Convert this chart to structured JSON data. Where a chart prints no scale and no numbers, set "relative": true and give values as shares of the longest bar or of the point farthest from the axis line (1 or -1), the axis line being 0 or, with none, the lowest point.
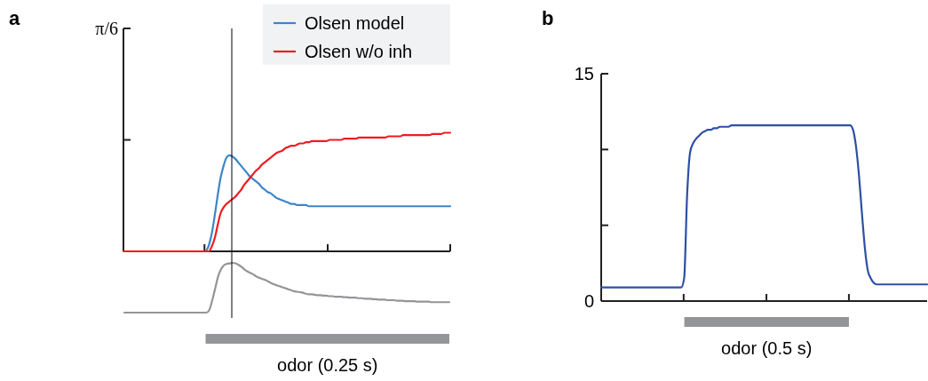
{
  "chart_data": [
    {
      "type": "line",
      "title": "a",
      "relative": true,
      "legend": "top right",
      "annotations": [
        "π/6"
      ],
      "categories": [
        null,
        null,
        null,
        null,
        null,
        null,
        null,
        null,
        null,
        null,
        null,
        null,
        null,
        null,
        null,
        null,
        null,
        null,
        null,
        null,
        null,
        null,
        null,
        null,
        null,
        null,
        null,
        null,
        null,
        null,
        null,
        null,
        null,
        null,
        null,
        null,
        null,
        null,
        null,
        null,
        null,
        null,
        null,
        null,
        null,
        null,
        null,
        null,
        null,
        null,
        null,
        null,
        null,
        null,
        null,
        null,
        null,
        null,
        null,
        null,
        null,
        null,
        null,
        null,
        null,
        null,
        null,
        null,
        null,
        null,
        null,
        null,
        null,
        null,
        null,
        null,
        null,
        null,
        null,
        null,
        null,
        null,
        null,
        null,
        null,
        null,
        null,
        null,
        null,
        null,
        null,
        null,
        null,
        null,
        null,
        null,
        null,
        null,
        null,
        null,
        null,
        null,
        null,
        null,
        null,
        null,
        null,
        null,
        null,
        null,
        null,
        null
      ],
      "series": [
        {
          "name": "Olsen model",
          "color": "#3d85c6",
          "values": [
            null,
            null,
            null,
            null,
            null,
            null,
            null,
            null,
            null,
            null,
            null,
            null,
            null,
            null,
            null,
            null,
            null,
            null,
            null,
            null,
            null,
            null,
            null,
            null,
            null,
            null,
            null,
            null,
            0,
            0.05,
            0.15,
            0.3,
            0.47,
            0.62,
            0.72,
            0.79,
            0.81,
            0.8,
            0.78,
            0.75,
            0.72,
            0.69,
            0.66,
            0.63,
            0.61,
            0.59,
            0.57,
            0.54,
            0.52,
            0.5,
            0.49,
            0.47,
            0.45,
            0.44,
            0.43,
            0.42,
            0.41,
            0.4,
            0.4,
            0.39,
            0.39,
            0.39,
            0.39,
            0.38,
            0.38,
            0.38,
            0.38,
            0.38,
            0.38,
            0.38,
            0.38,
            0.38,
            0.38,
            0.38,
            0.38,
            0.38,
            0.38,
            0.38,
            0.38,
            0.38,
            0.38,
            0.38,
            0.38,
            0.38,
            0.38,
            0.38,
            0.38,
            0.38,
            0.38,
            0.38,
            0.38,
            0.38,
            0.38,
            0.38,
            0.38,
            0.38,
            0.38,
            0.38,
            0.38,
            0.38,
            0.38,
            0.38,
            0.38,
            0.38,
            0.38,
            0.38,
            0.38,
            0.38,
            0.38,
            0.38,
            0.38,
            0.38
          ]
        },
        {
          "name": "Olsen w/o inh",
          "color": "#ed1c24",
          "values": [
            0,
            0,
            0,
            0,
            0,
            0,
            0,
            0,
            0,
            0,
            0,
            0,
            0,
            0,
            0,
            0,
            0,
            0,
            0,
            0,
            0,
            0,
            0,
            0,
            0,
            0,
            0,
            0,
            0,
            0,
            0.04,
            0.11,
            0.22,
            0.32,
            0.37,
            0.4,
            0.42,
            0.44,
            0.46,
            0.49,
            0.52,
            0.56,
            0.59,
            0.62,
            0.65,
            0.68,
            0.7,
            0.73,
            0.75,
            0.77,
            0.79,
            0.81,
            0.83,
            0.84,
            0.85,
            0.87,
            0.88,
            0.89,
            0.89,
            0.9,
            0.91,
            0.91,
            0.92,
            0.92,
            0.93,
            0.93,
            0.93,
            0.93,
            0.93,
            0.93,
            0.94,
            0.94,
            0.94,
            0.94,
            0.94,
            0.95,
            0.95,
            0.95,
            0.95,
            0.95,
            0.96,
            0.96,
            0.96,
            0.96,
            0.96,
            0.96,
            0.96,
            0.96,
            0.96,
            0.96,
            0.97,
            0.97,
            0.97,
            0.97,
            0.97,
            0.98,
            0.98,
            0.98,
            0.98,
            0.98,
            0.98,
            0.98,
            0.98,
            0.98,
            0.98,
            0.99,
            0.99,
            0.99,
            0.99,
            1,
            1,
            1
          ]
        }
      ]
    },
    {
      "type": "line",
      "relative": true,
      "xlabel": "odor (0.25 s)",
      "categories": [
        null,
        null,
        null,
        null,
        null,
        null,
        null,
        null,
        null,
        null,
        null,
        null,
        null,
        null,
        null,
        null,
        null,
        null,
        null,
        null,
        null,
        null,
        null,
        null,
        null,
        null,
        null,
        null,
        null,
        null,
        null,
        null,
        null,
        null,
        null,
        null,
        null,
        null,
        null,
        null,
        null,
        null,
        null,
        null,
        null,
        null,
        null,
        null,
        null,
        null,
        null,
        null,
        null,
        null,
        null,
        null,
        null,
        null,
        null,
        null,
        null,
        null,
        null,
        null,
        null,
        null,
        null,
        null,
        null,
        null,
        null,
        null,
        null,
        null,
        null,
        null,
        null,
        null,
        null,
        null,
        null,
        null,
        null,
        null,
        null,
        null,
        null,
        null,
        null,
        null,
        null,
        null,
        null,
        null,
        null,
        null,
        null,
        null,
        null,
        null,
        null,
        null,
        null,
        null,
        null,
        null,
        null,
        null,
        null,
        null,
        null,
        null
      ],
      "series": [
        {
          "color": "#939598",
          "values": [
            0,
            0,
            0,
            0,
            0,
            0,
            0,
            0,
            0,
            0,
            0,
            0,
            0,
            0,
            0,
            0,
            0,
            0,
            0,
            0,
            0,
            0,
            0,
            0,
            0,
            0,
            0,
            0,
            0,
            0.05,
            0.24,
            0.48,
            0.72,
            0.87,
            0.95,
            0.98,
            0.99,
            1,
            0.99,
            0.96,
            0.92,
            0.87,
            0.83,
            0.8,
            0.77,
            0.73,
            0.7,
            0.68,
            0.66,
            0.63,
            0.6,
            0.57,
            0.55,
            0.53,
            0.51,
            0.49,
            0.47,
            0.45,
            0.43,
            0.42,
            0.41,
            0.4,
            0.38,
            0.37,
            0.37,
            0.36,
            0.35,
            0.35,
            0.34,
            0.34,
            0.33,
            0.33,
            0.32,
            0.32,
            0.32,
            0.31,
            0.31,
            0.3,
            0.3,
            0.3,
            0.29,
            0.29,
            0.28,
            0.28,
            0.28,
            0.27,
            0.27,
            0.26,
            0.26,
            0.26,
            0.25,
            0.25,
            0.25,
            0.24,
            0.24,
            0.24,
            0.23,
            0.23,
            0.23,
            0.23,
            0.22,
            0.22,
            0.22,
            0.22,
            0.22,
            0.21,
            0.21,
            0.21,
            0.21,
            0.21,
            0.21,
            0.21
          ]
        }
      ]
    },
    {
      "type": "line",
      "title": "b",
      "xlabel": "odor (0.5 s)",
      "ylim": [
        0,
        15
      ],
      "yticks": [
        0,
        {
          "value": 5,
          "label": null
        },
        {
          "value": 10,
          "label": null
        },
        15
      ],
      "categories": [
        null,
        null,
        null,
        null,
        null,
        null,
        null,
        null,
        null,
        null,
        null,
        null,
        null,
        null,
        null,
        null,
        null,
        null,
        null,
        null,
        null,
        null,
        null,
        null,
        null,
        null,
        null,
        null,
        null,
        null,
        null,
        null,
        null,
        null,
        null,
        null,
        null,
        null,
        null,
        null,
        null,
        null,
        null,
        null,
        null,
        null,
        null,
        null,
        null,
        null,
        null,
        null,
        null,
        null,
        null,
        null,
        null,
        null,
        null,
        null,
        null,
        null,
        null,
        null,
        null,
        null,
        null,
        null,
        null,
        null,
        null,
        null,
        null,
        null,
        null,
        null,
        null,
        null,
        null,
        null,
        null,
        null,
        null,
        null,
        null,
        null,
        null,
        null,
        null,
        null,
        null,
        null,
        null,
        null,
        null,
        null,
        null,
        null,
        null,
        null,
        null,
        null,
        null,
        null,
        null,
        null,
        null,
        null,
        null,
        null,
        null
      ],
      "series": [
        {
          "color": "#2e4fa3",
          "values": [
            0.9,
            0.9,
            0.9,
            0.9,
            0.9,
            0.9,
            0.9,
            0.9,
            0.9,
            0.9,
            0.9,
            0.9,
            0.9,
            0.9,
            0.9,
            0.9,
            0.9,
            0.9,
            0.9,
            0.9,
            0.9,
            0.9,
            0.9,
            0.9,
            0.9,
            0.9,
            0.9,
            0.9,
            1.5,
            7,
            9.8,
            10.4,
            10.7,
            10.9,
            11.1,
            11.2,
            11.3,
            11.3,
            11.4,
            11.4,
            11.5,
            11.5,
            11.5,
            11.5,
            11.6,
            11.6,
            11.6,
            11.6,
            11.6,
            11.6,
            11.6,
            11.6,
            11.6,
            11.6,
            11.6,
            11.6,
            11.6,
            11.6,
            11.6,
            11.6,
            11.6,
            11.6,
            11.6,
            11.6,
            11.6,
            11.6,
            11.6,
            11.6,
            11.6,
            11.6,
            11.6,
            11.6,
            11.6,
            11.6,
            11.6,
            11.6,
            11.6,
            11.6,
            11.6,
            11.6,
            11.6,
            11.6,
            11.6,
            11.6,
            11.6,
            11.3,
            10.2,
            8.3,
            5.8,
            3.5,
            2,
            1.5,
            1.2,
            1.1,
            1.1,
            1.1,
            1.1,
            1.1,
            1.1,
            1.1,
            1.1,
            1.1,
            1.1,
            1.1,
            1.1,
            1.1,
            1.1,
            1.1,
            1.1,
            1.1,
            1.1
          ]
        }
      ]
    }
  ]
}
